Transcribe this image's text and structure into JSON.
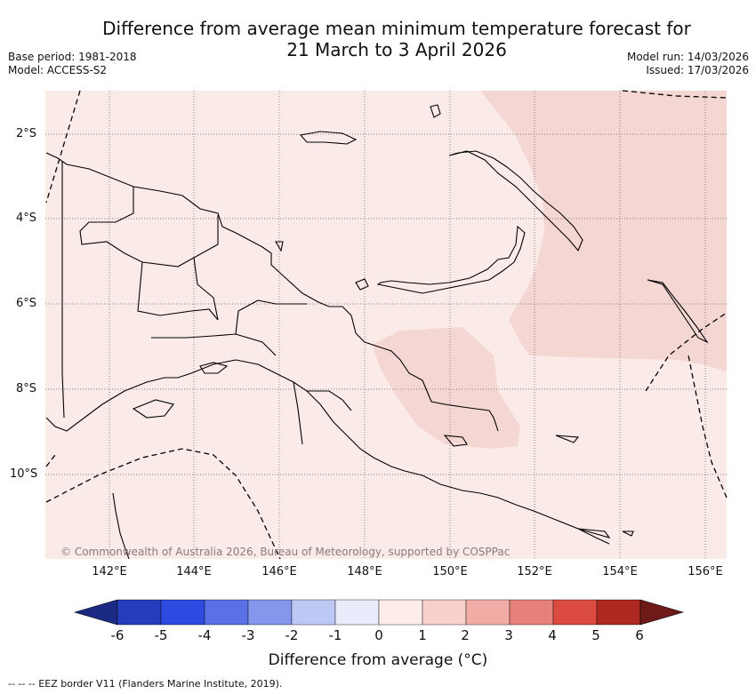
{
  "header": {
    "title_line1": "Difference from average mean minimum temperature forecast for",
    "title_line2": "21 March to 3 April 2026",
    "base_period": "Base period: 1981-2018",
    "model": "Model: ACCESS-S2",
    "model_run": "Model run: 14/03/2026",
    "issued": "Issued: 17/03/2026"
  },
  "map": {
    "region": "Papua New Guinea",
    "lat_ticks": [
      "2°S",
      "4°S",
      "6°S",
      "8°S",
      "10°S"
    ],
    "lon_ticks": [
      "142°E",
      "144°E",
      "146°E",
      "148°E",
      "150°E",
      "152°E",
      "154°E",
      "156°E"
    ],
    "credit": "© Commonwealth of Australia 2026, Bureau of Meteorology, supported by COSPPac",
    "colors": {
      "base_anomaly": "#fbebe8",
      "warm_anomaly": "#f4d6d3",
      "coast": "#000000",
      "grid": "#6b5b5b"
    }
  },
  "colorbar": {
    "title": "Difference from average (°C)",
    "labels": [
      "-6",
      "-5",
      "-4",
      "-3",
      "-2",
      "-1",
      "0",
      "1",
      "2",
      "3",
      "4",
      "5",
      "6"
    ],
    "colors": [
      "#1b2b85",
      "#233dbb",
      "#2d4be0",
      "#5a70e6",
      "#8597ec",
      "#bec8f4",
      "#e8ecfb",
      "#fdecea",
      "#f7d0cc",
      "#f0aca5",
      "#e6807a",
      "#db4b3f",
      "#ad2820",
      "#6e1a18"
    ]
  },
  "footnote": "-- -- -- EEZ border V11 (Flanders Marine Institute, 2019)."
}
